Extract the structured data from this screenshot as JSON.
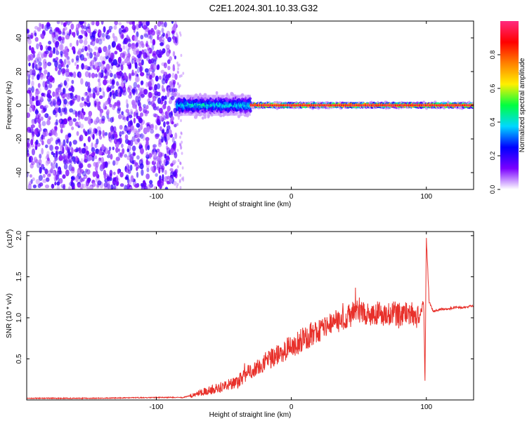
{
  "figure": {
    "title": "C2E1.2024.301.10.33.G32"
  },
  "colors": {
    "snr_line": "#e8302a",
    "frame": "#000000"
  },
  "chart_data": [
    {
      "type": "heatmap",
      "title": "C2E1.2024.301.10.33.G32",
      "xlabel": "Height of straight line (km)",
      "ylabel": "Frequency (Hz)",
      "xlim": [
        -196,
        135
      ],
      "ylim": [
        -50,
        50
      ],
      "x_ticks": [
        -100,
        0,
        100
      ],
      "y_ticks": [
        -40,
        -20,
        0,
        20,
        40
      ],
      "grid": false,
      "colorbar": {
        "label": "Normalized spectral amplitude",
        "range": [
          0,
          1
        ],
        "ticks": [
          "0.0",
          "0.2",
          "0.4",
          "0.6",
          "0.8"
        ],
        "colormap": [
          "#ffffff",
          "#7a00ff",
          "#0000ff",
          "#00d8ff",
          "#00ff40",
          "#fff000",
          "#ff8000",
          "#ff0000",
          "#ff2a80"
        ]
      },
      "regions": [
        {
          "x_range": [
            -196,
            -85
          ],
          "freq_range": [
            -50,
            50
          ],
          "amplitude": 0.15,
          "description": "noise"
        },
        {
          "x_range": [
            -85,
            -30
          ],
          "freq_center": 0,
          "freq_spread": 7,
          "amplitude": 0.4
        },
        {
          "x_range": [
            -30,
            135
          ],
          "freq_center": 0,
          "freq_spread": 1.5,
          "amplitude": 0.9
        }
      ]
    },
    {
      "type": "line",
      "xlabel": "Height of straight line (km)",
      "ylabel": "SNR (10 * v/v)",
      "yscale_label": "(x10",
      "yscale_exponent": "4",
      "xlim": [
        -196,
        135
      ],
      "ylim": [
        0,
        2.05
      ],
      "x_ticks": [
        -100,
        0,
        100
      ],
      "y_ticks": [
        0.5,
        1.0,
        1.5,
        2.0
      ],
      "grid": false,
      "series": [
        {
          "x": [
            -196,
            -150,
            -100,
            -80,
            -75,
            -70,
            -60,
            -50,
            -40,
            -30,
            -20,
            -10,
            0,
            10,
            20,
            30,
            40,
            50,
            60,
            70,
            80,
            90,
            95,
            98,
            99,
            100,
            102,
            105,
            110,
            120,
            135
          ],
          "y": [
            0.02,
            0.02,
            0.03,
            0.03,
            0.05,
            0.08,
            0.12,
            0.17,
            0.22,
            0.35,
            0.45,
            0.55,
            0.65,
            0.75,
            0.85,
            0.92,
            1.0,
            1.08,
            1.05,
            1.05,
            1.05,
            1.05,
            1.0,
            1.2,
            0.2,
            2.0,
            1.2,
            1.08,
            1.1,
            1.12,
            1.14
          ]
        }
      ]
    }
  ]
}
